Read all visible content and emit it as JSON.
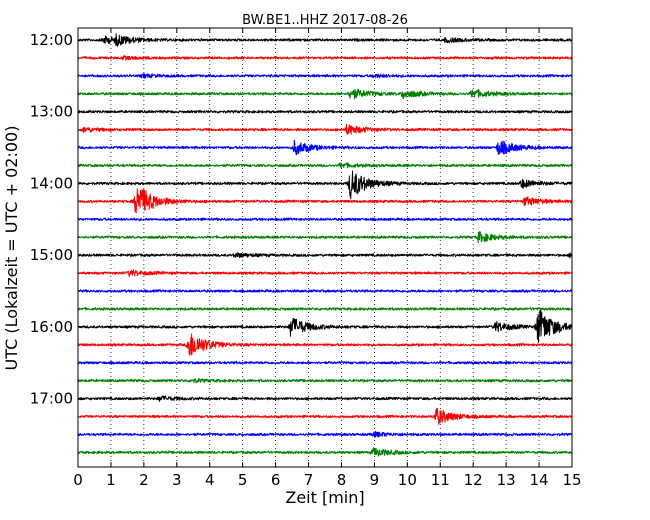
{
  "chart_data": {
    "type": "line",
    "title": "BW.BE1..HHZ 2017-08-26",
    "xlabel": "Zeit  [min]",
    "ylabel": "UTC (Lokalzeit = UTC + 02:00)",
    "xlim": [
      0,
      15
    ],
    "x_ticks": [
      "0",
      "1",
      "2",
      "3",
      "4",
      "5",
      "6",
      "7",
      "8",
      "9",
      "10",
      "11",
      "12",
      "13",
      "14",
      "15"
    ],
    "y_ticks": [
      "12:00",
      "13:00",
      "14:00",
      "15:00",
      "16:00",
      "17:00"
    ],
    "trace_interval_minutes": 15,
    "grid": "vertical dotted",
    "colors": [
      "#000000",
      "#ff0000",
      "#0000ff",
      "#008000"
    ],
    "traces": [
      {
        "start": "12:00",
        "color": "#000000",
        "events": [
          {
            "t": 0.8,
            "amp": 0.25
          },
          {
            "t": 1.2,
            "amp": 0.3
          },
          {
            "t": 11.2,
            "amp": 0.15
          }
        ]
      },
      {
        "start": "12:15",
        "color": "#ff0000",
        "events": [
          {
            "t": 1.4,
            "amp": 0.1
          }
        ]
      },
      {
        "start": "12:30",
        "color": "#0000ff",
        "events": [
          {
            "t": 2.0,
            "amp": 0.1
          },
          {
            "t": 9.0,
            "amp": 0.1
          }
        ]
      },
      {
        "start": "12:45",
        "color": "#008000",
        "events": [
          {
            "t": 8.3,
            "amp": 0.4
          },
          {
            "t": 9.9,
            "amp": 0.3
          },
          {
            "t": 12.0,
            "amp": 0.3
          }
        ]
      },
      {
        "start": "13:00",
        "color": "#000000",
        "events": []
      },
      {
        "start": "13:15",
        "color": "#ff0000",
        "events": [
          {
            "t": 0.2,
            "amp": 0.15
          },
          {
            "t": 8.2,
            "amp": 0.35
          }
        ]
      },
      {
        "start": "13:30",
        "color": "#0000ff",
        "events": [
          {
            "t": 6.6,
            "amp": 0.5
          },
          {
            "t": 12.8,
            "amp": 0.55
          }
        ]
      },
      {
        "start": "13:45",
        "color": "#008000",
        "events": [
          {
            "t": 8.0,
            "amp": 0.15
          }
        ]
      },
      {
        "start": "14:00",
        "color": "#000000",
        "events": [
          {
            "t": 8.3,
            "amp": 1.1
          },
          {
            "t": 13.5,
            "amp": 0.3
          }
        ]
      },
      {
        "start": "14:15",
        "color": "#ff0000",
        "events": [
          {
            "t": 1.8,
            "amp": 1.3
          },
          {
            "t": 13.6,
            "amp": 0.3
          }
        ]
      },
      {
        "start": "14:30",
        "color": "#0000ff",
        "events": []
      },
      {
        "start": "14:45",
        "color": "#008000",
        "events": [
          {
            "t": 12.2,
            "amp": 0.35
          }
        ]
      },
      {
        "start": "15:00",
        "color": "#000000",
        "events": [
          {
            "t": 4.8,
            "amp": 0.15
          },
          {
            "t": 15.0,
            "amp": 0.2
          }
        ]
      },
      {
        "start": "15:15",
        "color": "#ff0000",
        "events": [
          {
            "t": 1.6,
            "amp": 0.2
          }
        ]
      },
      {
        "start": "15:30",
        "color": "#0000ff",
        "events": []
      },
      {
        "start": "15:45",
        "color": "#008000",
        "events": []
      },
      {
        "start": "16:00",
        "color": "#000000",
        "events": [
          {
            "t": 6.5,
            "amp": 0.7
          },
          {
            "t": 12.7,
            "amp": 0.35
          },
          {
            "t": 14.0,
            "amp": 1.3
          }
        ]
      },
      {
        "start": "16:15",
        "color": "#ff0000",
        "events": [
          {
            "t": 3.4,
            "amp": 1.0
          }
        ]
      },
      {
        "start": "16:30",
        "color": "#0000ff",
        "events": []
      },
      {
        "start": "16:45",
        "color": "#008000",
        "events": [
          {
            "t": 3.5,
            "amp": 0.1
          }
        ]
      },
      {
        "start": "17:00",
        "color": "#000000",
        "events": [
          {
            "t": 2.5,
            "amp": 0.15
          }
        ]
      },
      {
        "start": "17:15",
        "color": "#ff0000",
        "events": [
          {
            "t": 10.9,
            "amp": 0.6
          }
        ]
      },
      {
        "start": "17:30",
        "color": "#0000ff",
        "events": [
          {
            "t": 9.0,
            "amp": 0.15
          }
        ]
      },
      {
        "start": "17:45",
        "color": "#008000",
        "events": [
          {
            "t": 9.0,
            "amp": 0.3
          }
        ]
      }
    ]
  }
}
